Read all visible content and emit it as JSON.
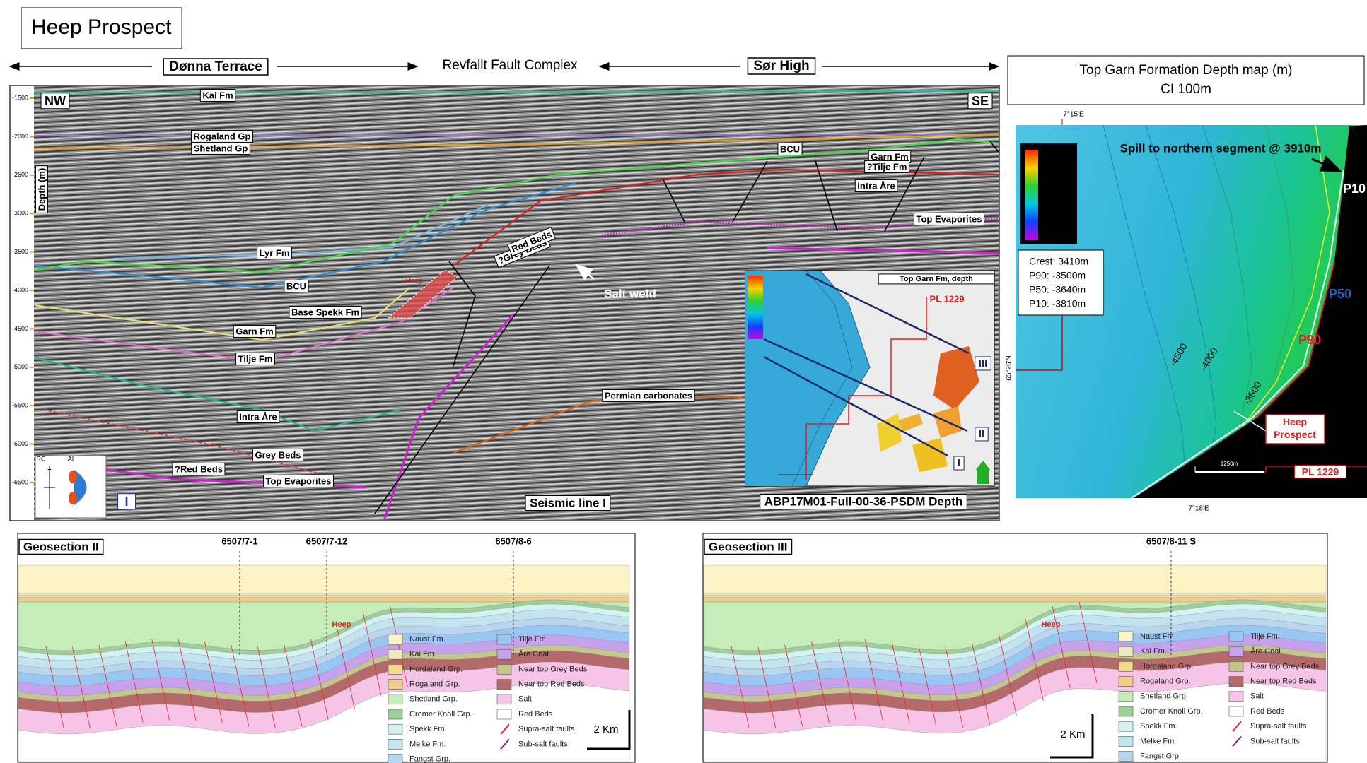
{
  "title": "Heep Prospect",
  "header": {
    "left": "Dønna Terrace",
    "center": "Revfallt Fault Complex",
    "right": "Sør High"
  },
  "seismic": {
    "corner_left": "NW",
    "corner_right": "SE",
    "axis_label": "Depth (m)",
    "depth_ticks": [
      -1500,
      -2000,
      -2500,
      -3000,
      -3500,
      -4000,
      -4500,
      -5000,
      -5500,
      -6000,
      -6500
    ],
    "horizon_labels": [
      "Kai Fm",
      "Rogaland Gp",
      "Shetland Gp",
      "Lyr Fm",
      "BCU",
      "Base Spekk Fm",
      "Garn Fm",
      "Tilje Fm",
      "Intra Åre",
      "Grey Beds",
      "?Red Beds",
      "Top Evaporites",
      "?Grey Beds",
      "Red Beds",
      "Permian carbonates",
      "BCU",
      "Garn Fm",
      "?Tilje Fm",
      "Intra Åre",
      "Top Evaporites"
    ],
    "heep_label": "Heep",
    "salt_weld": "Salt weld",
    "line_label": "Seismic line I",
    "survey": "ABP17M01-Full-00-36-PSDM Depth",
    "panel_number": "I",
    "wavelet_key": [
      "RC",
      "AI",
      "+"
    ],
    "inset": {
      "title": "Top Garn Fm, depth",
      "licence": "PL 1229",
      "lines": [
        "III",
        "II",
        "I"
      ]
    }
  },
  "map": {
    "title": "Top Garn Formation Depth map (m)",
    "subtitle": "CI 100m",
    "lon_top": "7°15'E",
    "lon_bottom": "7°18'E",
    "lat": "65°26'N",
    "spill": "Spill to northern segment @ 3910m",
    "volumes": [
      "Crest: 3410m",
      "P90: -3500m",
      "P50: -3640m",
      "P10: -3810m"
    ],
    "outlines": [
      {
        "name": "P10",
        "color": "#ffffff"
      },
      {
        "name": "P50",
        "color": "#1f5fbf"
      },
      {
        "name": "P90",
        "color": "#e0201c"
      }
    ],
    "contours": [
      "-4500",
      "-4000",
      "-3500"
    ],
    "prospect": "Heep Prospect",
    "licence": "PL 1229",
    "scale": "1250m"
  },
  "geosections": [
    {
      "title": "Geosection II",
      "wells": [
        "6507/7-1",
        "6507/7-12",
        "6507/8-6"
      ],
      "heep": "Heep",
      "scale": "2 Km",
      "legend": [
        {
          "label": "Naust Fm.",
          "color": "#fdf3c4",
          "symbol": "box"
        },
        {
          "label": "Kai Fm.",
          "color": "#ece9c0",
          "symbol": "box"
        },
        {
          "label": "Hordaland Grp.",
          "color": "#f6d98c",
          "symbol": "box"
        },
        {
          "label": "Rogaland Grp.",
          "color": "#efcd8f",
          "symbol": "box"
        },
        {
          "label": "Shetland Grp.",
          "color": "#c6ecb8",
          "symbol": "box"
        },
        {
          "label": "Cromer Knoll Grp.",
          "color": "#9fcf98",
          "symbol": "box"
        },
        {
          "label": "Spekk Fm.",
          "color": "#d4f2f4",
          "symbol": "box"
        },
        {
          "label": "Melke Fm.",
          "color": "#c2e4ee",
          "symbol": "box"
        },
        {
          "label": "Fangst Grp.",
          "color": "#b9d6ee",
          "symbol": "box"
        },
        {
          "label": "Tilje Fm.",
          "color": "#99c6f2",
          "symbol": "box"
        },
        {
          "label": "Åre Coal",
          "color": "#c6a2ec",
          "symbol": "box"
        },
        {
          "label": "Near top Grey Beds",
          "color": "#c4c68e",
          "symbol": "box"
        },
        {
          "label": "Near top Red Beds",
          "color": "#b46a6a",
          "symbol": "box"
        },
        {
          "label": "Salt",
          "color": "#f6c4e6",
          "symbol": "box"
        },
        {
          "label": "Red Beds",
          "color": "#ffffff",
          "symbol": "box"
        },
        {
          "label": "Supra-salt faults",
          "color": "#e8262b",
          "symbol": "line"
        },
        {
          "label": "Sub-salt faults",
          "color": "#8e1a8e",
          "symbol": "line"
        }
      ]
    },
    {
      "title": "Geosection III",
      "wells": [
        "6507/8-11 S"
      ],
      "heep": "Heep",
      "scale": "2 Km",
      "legend": [
        {
          "label": "Naust Fm.",
          "color": "#fdf3c4",
          "symbol": "box"
        },
        {
          "label": "Kai Fm.",
          "color": "#ece9c0",
          "symbol": "box"
        },
        {
          "label": "Hordaland Grp.",
          "color": "#f6d98c",
          "symbol": "box"
        },
        {
          "label": "Rogaland Grp.",
          "color": "#efcd8f",
          "symbol": "box"
        },
        {
          "label": "Shetland Grp.",
          "color": "#c6ecb8",
          "symbol": "box"
        },
        {
          "label": "Cromer Knoll Grp.",
          "color": "#9fcf98",
          "symbol": "box"
        },
        {
          "label": "Spekk Fm.",
          "color": "#d4f2f4",
          "symbol": "box"
        },
        {
          "label": "Melke Fm.",
          "color": "#c2e4ee",
          "symbol": "box"
        },
        {
          "label": "Fangst Grp.",
          "color": "#b9d6ee",
          "symbol": "box"
        },
        {
          "label": "Tilje Fm.",
          "color": "#99c6f2",
          "symbol": "box"
        },
        {
          "label": "Åre Coal",
          "color": "#c6a2ec",
          "symbol": "box"
        },
        {
          "label": "Near top Grey Beds",
          "color": "#c4c68e",
          "symbol": "box"
        },
        {
          "label": "Near top Red Beds",
          "color": "#b46a6a",
          "symbol": "box"
        },
        {
          "label": "Salt",
          "color": "#f6c4e6",
          "symbol": "box"
        },
        {
          "label": "Red Beds",
          "color": "#ffffff",
          "symbol": "box"
        },
        {
          "label": "Supra-salt faults",
          "color": "#e8262b",
          "symbol": "line"
        },
        {
          "label": "Sub-salt faults",
          "color": "#8e1a8e",
          "symbol": "line"
        }
      ]
    }
  ]
}
